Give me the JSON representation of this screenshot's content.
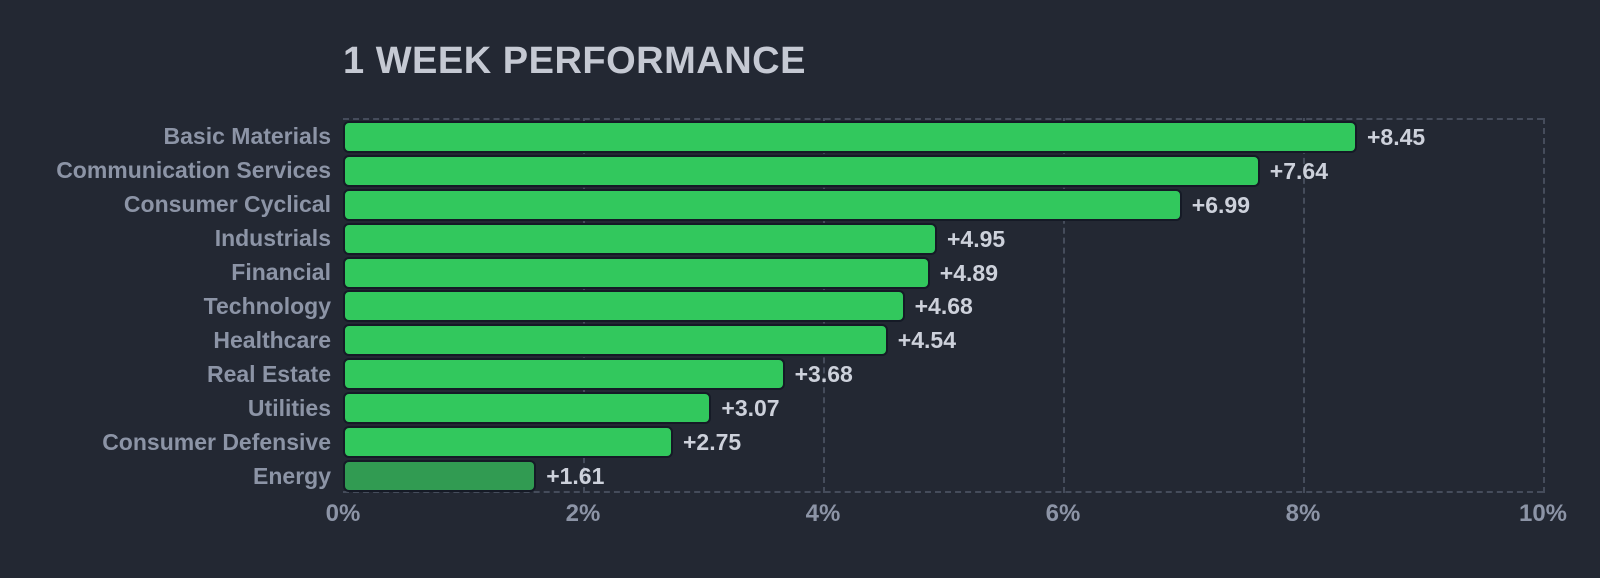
{
  "header": {
    "title": "1 WEEK PERFORMANCE"
  },
  "colors": {
    "background": "#232833",
    "bar_green": "#32c85d",
    "bar_green_muted": "#319b52",
    "bar_outline": "#151a26",
    "title_text": "#c5c9d3",
    "category_text": "#8c94a6",
    "value_text": "#cdd1db",
    "axis_text": "#8c94a6",
    "gridline": "#454c5b"
  },
  "chart_data": {
    "type": "bar",
    "orientation": "horizontal",
    "title": "1 WEEK PERFORMANCE",
    "categories": [
      "Basic Materials",
      "Communication Services",
      "Consumer Cyclical",
      "Industrials",
      "Financial",
      "Technology",
      "Healthcare",
      "Real Estate",
      "Utilities",
      "Consumer Defensive",
      "Energy"
    ],
    "values": [
      8.45,
      7.64,
      6.99,
      4.95,
      4.89,
      4.68,
      4.54,
      3.68,
      3.07,
      2.75,
      1.61
    ],
    "value_labels": [
      "+8.45",
      "+7.64",
      "+6.99",
      "+4.95",
      "+4.89",
      "+4.68",
      "+4.54",
      "+3.68",
      "+3.07",
      "+2.75",
      "+1.61"
    ],
    "xlabel": "",
    "ylabel": "",
    "xlim": [
      0,
      10
    ],
    "x_ticks": [
      "0%",
      "2%",
      "4%",
      "6%",
      "8%",
      "10%"
    ],
    "x_tick_values": [
      0,
      2,
      4,
      6,
      8,
      10
    ],
    "grid": "vertical-dashed",
    "legend": "none",
    "muted_bar_index": 10
  }
}
